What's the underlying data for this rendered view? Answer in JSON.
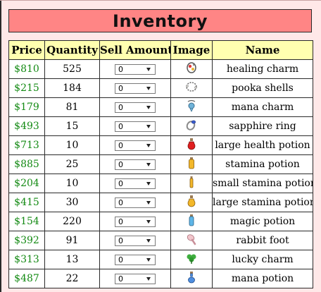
{
  "title": "Inventory",
  "columns": [
    "Price",
    "Quantity",
    "Sell Amount",
    "Image",
    "Name"
  ],
  "rows": [
    {
      "price": "$810",
      "quantity": "525",
      "sell": "0",
      "icon": "healing-charm-icon",
      "name": "healing charm"
    },
    {
      "price": "$215",
      "quantity": "184",
      "sell": "0",
      "icon": "pooka-shells-icon",
      "name": "pooka shells"
    },
    {
      "price": "$179",
      "quantity": "81",
      "sell": "0",
      "icon": "mana-charm-icon",
      "name": "mana charm"
    },
    {
      "price": "$493",
      "quantity": "15",
      "sell": "0",
      "icon": "sapphire-ring-icon",
      "name": "sapphire ring"
    },
    {
      "price": "$713",
      "quantity": "10",
      "sell": "0",
      "icon": "large-health-potion-icon",
      "name": "large health potion"
    },
    {
      "price": "$885",
      "quantity": "25",
      "sell": "0",
      "icon": "stamina-potion-icon",
      "name": "stamina potion"
    },
    {
      "price": "$204",
      "quantity": "10",
      "sell": "0",
      "icon": "small-stamina-potion-icon",
      "name": "small stamina potion"
    },
    {
      "price": "$415",
      "quantity": "30",
      "sell": "0",
      "icon": "large-stamina-potion-icon",
      "name": "large stamina potion"
    },
    {
      "price": "$154",
      "quantity": "220",
      "sell": "0",
      "icon": "magic-potion-icon",
      "name": "magic potion"
    },
    {
      "price": "$392",
      "quantity": "91",
      "sell": "0",
      "icon": "rabbit-foot-icon",
      "name": "rabbit foot"
    },
    {
      "price": "$313",
      "quantity": "13",
      "sell": "0",
      "icon": "lucky-charm-icon",
      "name": "lucky charm"
    },
    {
      "price": "$487",
      "quantity": "22",
      "sell": "0",
      "icon": "mana-potion-icon",
      "name": "mana potion"
    }
  ],
  "colors": {
    "title_bg": "#ff8585",
    "header_bg": "#ffffb0",
    "price_text": "#138a13",
    "page_bg": "#ffe8e8"
  }
}
